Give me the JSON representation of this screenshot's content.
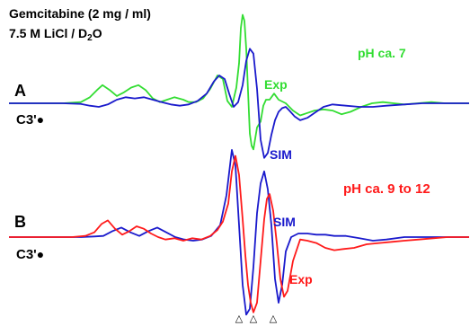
{
  "title_line1": "Gemcitabine (2 mg / ml)",
  "title_line2_pre": "7.5 M LiCl / D",
  "title_line2_sub": "2",
  "title_line2_post": "O",
  "colors": {
    "green": "#33dd33",
    "blue": "#1a1acc",
    "red": "#ff1a1a",
    "black": "#000000"
  },
  "chart_data": [
    {
      "type": "line",
      "panel": "A",
      "label": "A",
      "species": "C3'",
      "condition": "pH ca. 7",
      "grid": false,
      "axes_visible": false,
      "series": [
        {
          "name": "Exp",
          "color": "#33dd33",
          "x": [
            0,
            30,
            60,
            80,
            90,
            98,
            104,
            112,
            120,
            128,
            136,
            144,
            152,
            160,
            168,
            176,
            184,
            194,
            200,
            208,
            216,
            224,
            232,
            238,
            243,
            248,
            253,
            256,
            258,
            260,
            262,
            264,
            266,
            268,
            270,
            272,
            276,
            280,
            283,
            286,
            290,
            295,
            300,
            308,
            316,
            324,
            332,
            340,
            350,
            360,
            370,
            380,
            392,
            404,
            416,
            428,
            440,
            455,
            470,
            485,
            500,
            512
          ],
          "y": [
            0,
            0,
            0,
            0.1,
            0.5,
            1.1,
            1.5,
            1.1,
            0.6,
            0.9,
            1.3,
            1.5,
            1.1,
            0.4,
            0.1,
            0.3,
            0.5,
            0.3,
            0.1,
            0.1,
            0.4,
            1.2,
            2.3,
            2.0,
            0.2,
            -0.3,
            1.3,
            3.3,
            6.2,
            7.3,
            6.8,
            4.5,
            1.0,
            -2.5,
            -3.5,
            -3.8,
            -2.0,
            -1.5,
            -0.2,
            0.3,
            0.3,
            0.8,
            0.3,
            0.0,
            -0.6,
            -1.0,
            -0.8,
            -0.6,
            -0.5,
            -0.6,
            -0.9,
            -0.7,
            -0.3,
            0.0,
            0.1,
            0.0,
            -0.1,
            0.0,
            0.1,
            0.0,
            0.0,
            0.0
          ]
        },
        {
          "name": "SIM",
          "color": "#1a1acc",
          "x": [
            0,
            30,
            60,
            80,
            90,
            100,
            110,
            120,
            130,
            140,
            150,
            160,
            170,
            180,
            190,
            200,
            210,
            220,
            228,
            234,
            240,
            245,
            250,
            255,
            260,
            264,
            268,
            272,
            276,
            280,
            284,
            288,
            292,
            296,
            300,
            304,
            308,
            312,
            318,
            324,
            332,
            340,
            350,
            360,
            375,
            390,
            405,
            420,
            440,
            460,
            480,
            500,
            512
          ],
          "y": [
            0,
            0,
            0,
            -0.05,
            -0.2,
            -0.3,
            -0.1,
            0.3,
            0.5,
            0.4,
            0.5,
            0.3,
            0.1,
            -0.1,
            -0.2,
            -0.1,
            0.2,
            0.8,
            1.8,
            2.3,
            2.0,
            0.8,
            -0.3,
            0.1,
            1.5,
            3.5,
            4.5,
            4.1,
            1.2,
            -3.0,
            -4.5,
            -4.1,
            -2.6,
            -1.4,
            -0.7,
            -0.4,
            -0.3,
            -0.6,
            -1.1,
            -1.4,
            -1.2,
            -0.8,
            -0.3,
            -0.1,
            -0.2,
            -0.3,
            -0.3,
            -0.2,
            -0.1,
            0.0,
            0.0,
            0.0,
            0.0
          ]
        }
      ]
    },
    {
      "type": "line",
      "panel": "B",
      "label": "B",
      "species": "C3'",
      "condition": "pH ca. 9 to 12",
      "grid": false,
      "axes_visible": false,
      "series": [
        {
          "name": "SIM",
          "color": "#1a1acc",
          "x": [
            0,
            40,
            80,
            95,
            105,
            115,
            125,
            135,
            145,
            155,
            165,
            175,
            185,
            195,
            205,
            215,
            225,
            235,
            242,
            248,
            252,
            256,
            260,
            264,
            268,
            272,
            276,
            280,
            284,
            288,
            292,
            296,
            300,
            304,
            308,
            314,
            322,
            332,
            342,
            352,
            362,
            375,
            390,
            405,
            420,
            440,
            460,
            480,
            500,
            512
          ],
          "y": [
            0,
            0,
            0,
            0.05,
            0.1,
            0.5,
            0.8,
            0.4,
            0.1,
            0.5,
            0.8,
            0.4,
            0.0,
            -0.2,
            -0.3,
            -0.2,
            0.1,
            1.0,
            3.5,
            7.3,
            6.0,
            1.0,
            -4.0,
            -6.5,
            -6.0,
            -2.5,
            2.0,
            4.5,
            5.5,
            4.0,
            1.0,
            -3.5,
            -5.5,
            -4.0,
            -1.2,
            0.0,
            0.3,
            0.3,
            0.2,
            0.2,
            0.1,
            0.1,
            -0.1,
            -0.3,
            -0.2,
            0.0,
            0.0,
            0.0,
            0.0,
            0.0
          ]
        },
        {
          "name": "Exp",
          "color": "#ff1a1a",
          "x": [
            0,
            40,
            70,
            85,
            95,
            103,
            110,
            118,
            126,
            134,
            142,
            150,
            158,
            166,
            174,
            184,
            194,
            204,
            214,
            224,
            232,
            238,
            244,
            248,
            252,
            256,
            260,
            263,
            266,
            269,
            272,
            276,
            280,
            284,
            287,
            290,
            294,
            298,
            302,
            306,
            310,
            316,
            324,
            332,
            342,
            352,
            362,
            372,
            384,
            398,
            412,
            426,
            440,
            456,
            472,
            488,
            504,
            512
          ],
          "y": [
            0,
            0,
            0,
            0.1,
            0.4,
            1.1,
            1.4,
            0.7,
            0.2,
            0.5,
            0.9,
            0.7,
            0.3,
            0.0,
            -0.2,
            -0.1,
            -0.3,
            -0.1,
            -0.2,
            0.1,
            0.6,
            1.3,
            2.8,
            5.5,
            6.8,
            5.2,
            1.5,
            -1.5,
            -4.0,
            -5.5,
            -6.3,
            -5.5,
            -2.0,
            1.5,
            3.2,
            3.6,
            2.2,
            -0.5,
            -3.5,
            -5.0,
            -4.5,
            -2.0,
            -0.2,
            -0.3,
            -0.5,
            -0.9,
            -1.1,
            -1.0,
            -0.9,
            -0.6,
            -0.5,
            -0.4,
            -0.3,
            -0.2,
            -0.1,
            0.0,
            0.0,
            0.0
          ]
        }
      ],
      "markers": {
        "symbol": "△",
        "x": [
          256,
          272,
          294
        ]
      }
    }
  ]
}
